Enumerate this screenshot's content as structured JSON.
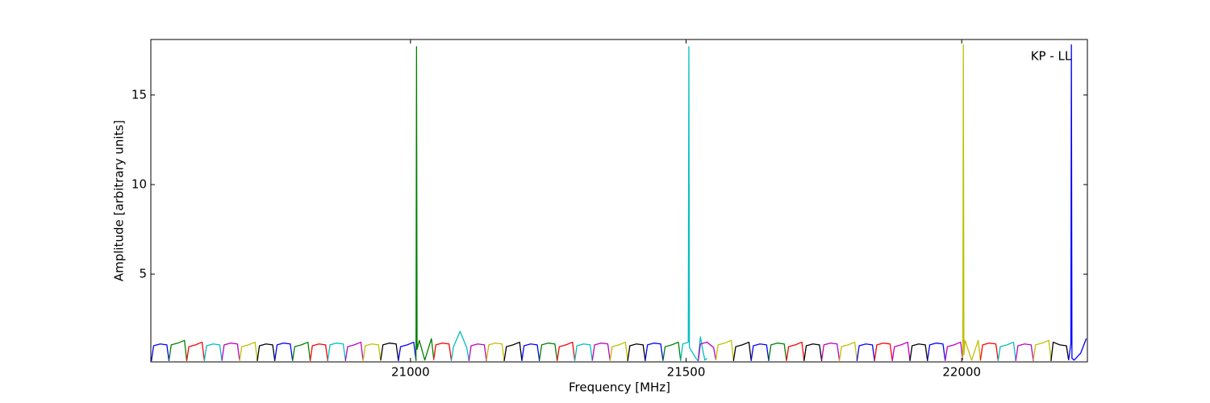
{
  "chart_data": {
    "type": "line",
    "xlabel": "Frequency [MHz]",
    "ylabel": "Amplitude [arbitrary units]",
    "annotation": "KP - LL",
    "xlim": [
      20529,
      22228
    ],
    "ylim": [
      0.1,
      18.1
    ],
    "xticks": [
      21000,
      21500,
      22000
    ],
    "yticks": [
      5,
      10,
      15
    ],
    "series": [
      {
        "color": "#0000ff",
        "x": [
          20530,
          20534,
          20546,
          20558,
          20562
        ],
        "values": [
          0.15,
          1.0,
          1.1,
          1.05,
          0.15
        ]
      },
      {
        "color": "#008000",
        "x": [
          20562,
          20566,
          20578,
          20590,
          20594
        ],
        "values": [
          0.2,
          1.05,
          1.15,
          1.3,
          0.2
        ]
      },
      {
        "color": "#ff0000",
        "x": [
          20594,
          20598,
          20610,
          20622,
          20626
        ],
        "values": [
          0.15,
          0.95,
          1.05,
          1.2,
          0.2
        ]
      },
      {
        "color": "#00bfbf",
        "x": [
          20626,
          20630,
          20642,
          20654,
          20658
        ],
        "values": [
          0.15,
          1.0,
          1.1,
          1.05,
          0.15
        ]
      },
      {
        "color": "#bf00bf",
        "x": [
          20658,
          20662,
          20674,
          20686,
          20690
        ],
        "values": [
          0.2,
          1.05,
          1.15,
          1.1,
          0.2
        ]
      },
      {
        "color": "#bfbf00",
        "x": [
          20690,
          20694,
          20706,
          20718,
          20722
        ],
        "values": [
          0.15,
          0.95,
          1.05,
          1.2,
          0.2
        ]
      },
      {
        "color": "#000000",
        "x": [
          20722,
          20726,
          20738,
          20750,
          20754
        ],
        "values": [
          0.15,
          1.0,
          1.1,
          1.05,
          0.15
        ]
      },
      {
        "color": "#0000ff",
        "x": [
          20754,
          20758,
          20770,
          20782,
          20786
        ],
        "values": [
          0.2,
          1.05,
          1.15,
          1.1,
          0.2
        ]
      },
      {
        "color": "#008000",
        "x": [
          20786,
          20790,
          20802,
          20814,
          20818
        ],
        "values": [
          0.15,
          0.95,
          1.05,
          1.2,
          0.2
        ]
      },
      {
        "color": "#ff0000",
        "x": [
          20818,
          20822,
          20834,
          20846,
          20850
        ],
        "values": [
          0.15,
          1.0,
          1.1,
          1.05,
          0.15
        ]
      },
      {
        "color": "#00bfbf",
        "x": [
          20850,
          20854,
          20866,
          20878,
          20882
        ],
        "values": [
          0.2,
          1.05,
          1.15,
          1.1,
          0.2
        ]
      },
      {
        "color": "#bf00bf",
        "x": [
          20882,
          20886,
          20898,
          20910,
          20914
        ],
        "values": [
          0.15,
          0.95,
          1.05,
          1.2,
          0.2
        ]
      },
      {
        "color": "#bfbf00",
        "x": [
          20914,
          20918,
          20930,
          20942,
          20946
        ],
        "values": [
          0.15,
          1.0,
          1.1,
          1.05,
          0.15
        ]
      },
      {
        "color": "#000000",
        "x": [
          20946,
          20950,
          20962,
          20974,
          20978
        ],
        "values": [
          0.2,
          1.05,
          1.15,
          1.1,
          0.2
        ]
      },
      {
        "color": "#0000ff",
        "x": [
          20978,
          20982,
          20994,
          21006,
          21010
        ],
        "values": [
          0.15,
          0.95,
          1.05,
          1.2,
          0.2
        ]
      },
      {
        "color": "#008000",
        "x": [
          21010,
          21011,
          21012,
          21016,
          21026,
          21038,
          21042
        ],
        "values": [
          0.15,
          17.7,
          0.8,
          1.3,
          0.2,
          1.4,
          0.3
        ]
      },
      {
        "color": "#ff0000",
        "x": [
          21042,
          21046,
          21058,
          21070,
          21074
        ],
        "values": [
          0.2,
          1.05,
          1.15,
          1.1,
          0.2
        ]
      },
      {
        "color": "#00bfbf",
        "x": [
          21074,
          21078,
          21090,
          21102,
          21106
        ],
        "values": [
          0.15,
          0.95,
          1.8,
          0.9,
          0.2
        ]
      },
      {
        "color": "#bf00bf",
        "x": [
          21106,
          21110,
          21122,
          21134,
          21138
        ],
        "values": [
          0.15,
          1.0,
          1.1,
          1.05,
          0.15
        ]
      },
      {
        "color": "#bfbf00",
        "x": [
          21138,
          21142,
          21154,
          21166,
          21170
        ],
        "values": [
          0.2,
          1.05,
          1.15,
          1.1,
          0.2
        ]
      },
      {
        "color": "#000000",
        "x": [
          21170,
          21174,
          21186,
          21198,
          21202
        ],
        "values": [
          0.15,
          0.95,
          1.05,
          1.2,
          0.2
        ]
      },
      {
        "color": "#0000ff",
        "x": [
          21202,
          21206,
          21218,
          21230,
          21234
        ],
        "values": [
          0.15,
          1.0,
          1.1,
          1.05,
          0.15
        ]
      },
      {
        "color": "#008000",
        "x": [
          21234,
          21238,
          21250,
          21262,
          21266
        ],
        "values": [
          0.2,
          1.05,
          1.15,
          1.1,
          0.2
        ]
      },
      {
        "color": "#ff0000",
        "x": [
          21266,
          21270,
          21282,
          21294,
          21298
        ],
        "values": [
          0.15,
          0.95,
          1.05,
          1.2,
          0.2
        ]
      },
      {
        "color": "#00bfbf",
        "x": [
          21298,
          21302,
          21314,
          21326,
          21330
        ],
        "values": [
          0.15,
          1.0,
          1.1,
          1.05,
          0.15
        ]
      },
      {
        "color": "#bf00bf",
        "x": [
          21330,
          21334,
          21346,
          21358,
          21362
        ],
        "values": [
          0.2,
          1.05,
          1.15,
          1.1,
          0.2
        ]
      },
      {
        "color": "#bfbf00",
        "x": [
          21362,
          21366,
          21378,
          21390,
          21394
        ],
        "values": [
          0.15,
          0.95,
          1.05,
          1.2,
          0.2
        ]
      },
      {
        "color": "#000000",
        "x": [
          21394,
          21398,
          21410,
          21422,
          21426
        ],
        "values": [
          0.15,
          1.0,
          1.1,
          1.05,
          0.15
        ]
      },
      {
        "color": "#0000ff",
        "x": [
          21426,
          21430,
          21442,
          21454,
          21458
        ],
        "values": [
          0.2,
          1.05,
          1.15,
          1.1,
          0.2
        ]
      },
      {
        "color": "#008000",
        "x": [
          21458,
          21462,
          21474,
          21486,
          21490
        ],
        "values": [
          0.15,
          0.95,
          1.05,
          1.2,
          0.2
        ]
      },
      {
        "color": "#00bfbf",
        "x": [
          21490,
          21494,
          21504,
          21505,
          21506,
          21518,
          21522
        ],
        "values": [
          0.15,
          1.1,
          1.2,
          17.7,
          0.9,
          0.3,
          0.15
        ]
      },
      {
        "color": "#00bfbf",
        "x": [
          21522,
          21526,
          21530,
          21534,
          21538
        ],
        "values": [
          0.3,
          1.5,
          0.8,
          0.2,
          0.3
        ]
      },
      {
        "color": "#bf00bf",
        "x": [
          21522,
          21526,
          21538,
          21550,
          21554
        ],
        "values": [
          0.15,
          1.1,
          1.2,
          0.9,
          0.2
        ]
      },
      {
        "color": "#bfbf00",
        "x": [
          21554,
          21558,
          21570,
          21582,
          21586
        ],
        "values": [
          0.2,
          1.05,
          1.15,
          1.3,
          0.2
        ]
      },
      {
        "color": "#000000",
        "x": [
          21586,
          21590,
          21602,
          21614,
          21618
        ],
        "values": [
          0.15,
          0.95,
          1.05,
          1.2,
          0.2
        ]
      },
      {
        "color": "#0000ff",
        "x": [
          21618,
          21622,
          21634,
          21646,
          21650
        ],
        "values": [
          0.15,
          1.0,
          1.1,
          1.05,
          0.15
        ]
      },
      {
        "color": "#008000",
        "x": [
          21650,
          21654,
          21666,
          21678,
          21682
        ],
        "values": [
          0.2,
          1.05,
          1.15,
          1.1,
          0.2
        ]
      },
      {
        "color": "#ff0000",
        "x": [
          21682,
          21686,
          21698,
          21710,
          21714
        ],
        "values": [
          0.15,
          0.95,
          1.05,
          1.2,
          0.2
        ]
      },
      {
        "color": "#000000",
        "x": [
          21714,
          21718,
          21730,
          21742,
          21746
        ],
        "values": [
          0.15,
          1.0,
          1.1,
          1.05,
          0.15
        ]
      },
      {
        "color": "#bf00bf",
        "x": [
          21746,
          21750,
          21762,
          21774,
          21778
        ],
        "values": [
          0.2,
          1.05,
          1.15,
          1.1,
          0.2
        ]
      },
      {
        "color": "#bfbf00",
        "x": [
          21778,
          21782,
          21794,
          21806,
          21810
        ],
        "values": [
          0.15,
          0.95,
          1.05,
          1.2,
          0.2
        ]
      },
      {
        "color": "#0000ff",
        "x": [
          21810,
          21814,
          21826,
          21838,
          21842
        ],
        "values": [
          0.15,
          1.0,
          1.1,
          1.05,
          0.15
        ]
      },
      {
        "color": "#ff0000",
        "x": [
          21842,
          21846,
          21858,
          21870,
          21874
        ],
        "values": [
          0.2,
          1.05,
          1.15,
          1.1,
          0.2
        ]
      },
      {
        "color": "#bf00bf",
        "x": [
          21874,
          21878,
          21890,
          21902,
          21906
        ],
        "values": [
          0.15,
          0.95,
          1.05,
          1.2,
          0.2
        ]
      },
      {
        "color": "#000000",
        "x": [
          21906,
          21910,
          21922,
          21934,
          21938
        ],
        "values": [
          0.15,
          1.0,
          1.1,
          1.05,
          0.15
        ]
      },
      {
        "color": "#0000ff",
        "x": [
          21938,
          21942,
          21954,
          21966,
          21970
        ],
        "values": [
          0.2,
          1.05,
          1.15,
          1.1,
          0.2
        ]
      },
      {
        "color": "#bf00bf",
        "x": [
          21970,
          21974,
          21986,
          21998,
          22002
        ],
        "values": [
          0.15,
          0.95,
          1.05,
          1.2,
          0.2
        ]
      },
      {
        "color": "#bfbf00",
        "x": [
          22002,
          22003,
          22004,
          22006,
          22018,
          22030,
          22034
        ],
        "values": [
          0.3,
          17.8,
          0.5,
          1.3,
          0.2,
          1.3,
          0.15
        ]
      },
      {
        "color": "#ff0000",
        "x": [
          22034,
          22038,
          22050,
          22062,
          22066
        ],
        "values": [
          0.2,
          1.05,
          1.15,
          1.1,
          0.2
        ]
      },
      {
        "color": "#00bfbf",
        "x": [
          22066,
          22070,
          22082,
          22094,
          22098
        ],
        "values": [
          0.15,
          0.95,
          1.05,
          1.2,
          0.2
        ]
      },
      {
        "color": "#bf00bf",
        "x": [
          22098,
          22102,
          22114,
          22126,
          22130
        ],
        "values": [
          0.15,
          1.0,
          1.1,
          1.05,
          0.15
        ]
      },
      {
        "color": "#bfbf00",
        "x": [
          22130,
          22134,
          22146,
          22158,
          22162
        ],
        "values": [
          0.2,
          1.05,
          1.15,
          1.3,
          0.2
        ]
      },
      {
        "color": "#000000",
        "x": [
          22162,
          22166,
          22178,
          22190,
          22194
        ],
        "values": [
          0.15,
          1.2,
          1.05,
          1.0,
          0.2
        ]
      },
      {
        "color": "#0000ff",
        "x": [
          22194,
          22198,
          22199,
          22200,
          22204,
          22216,
          22226
        ],
        "values": [
          0.2,
          1.1,
          17.8,
          0.3,
          0.2,
          0.6,
          1.4
        ]
      }
    ]
  }
}
